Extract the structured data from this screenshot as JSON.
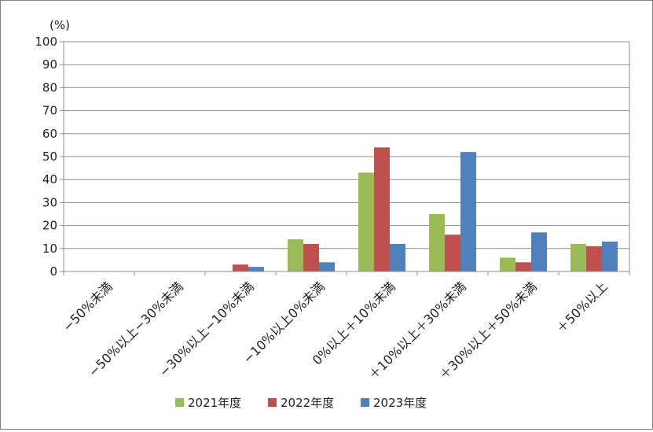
{
  "chart_data": {
    "type": "bar",
    "title": "",
    "xlabel": "",
    "ylabel": "(%)",
    "ylim": [
      0,
      100
    ],
    "yticks": [
      0,
      10,
      20,
      30,
      40,
      50,
      60,
      70,
      80,
      90,
      100
    ],
    "grid": true,
    "legend_position": "bottom",
    "categories": [
      "−50%未満",
      "−50%以上−30%未満",
      "−30%以上−10%未満",
      "−10%以上0%未満",
      "0%以上＋10%未満",
      "＋10%以上＋30%未満",
      "＋30%以上＋50%未満",
      "＋50%以上"
    ],
    "series": [
      {
        "name": "2021年度",
        "color": "#9bbb59",
        "values": [
          0,
          0,
          0,
          14,
          43,
          25,
          6,
          12
        ]
      },
      {
        "name": "2022年度",
        "color": "#c0504d",
        "values": [
          0,
          0,
          3,
          12,
          54,
          16,
          4,
          11
        ]
      },
      {
        "name": "2023年度",
        "color": "#4f81bd",
        "values": [
          0,
          0,
          2,
          4,
          12,
          52,
          17,
          13
        ]
      }
    ]
  }
}
